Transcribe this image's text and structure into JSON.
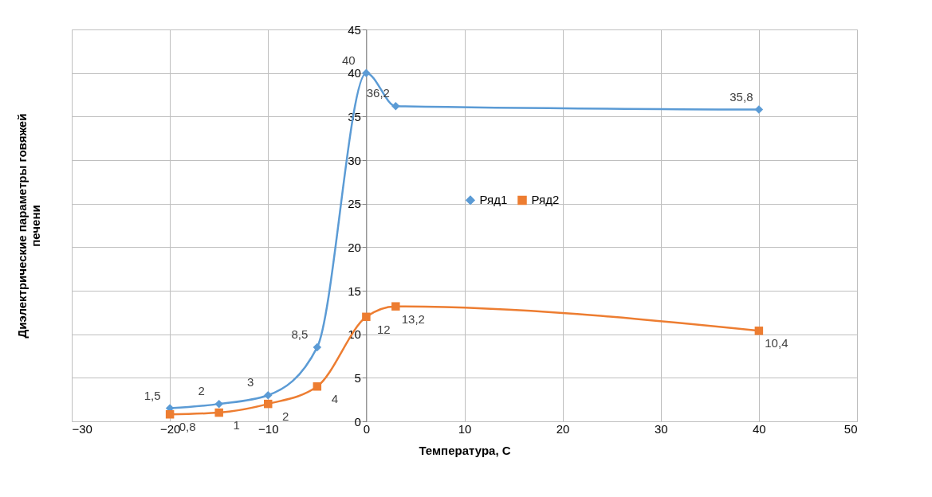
{
  "chart_data": {
    "type": "line",
    "xlabel": "Температура, С",
    "ylabel": "Диэлектрические параметры говяжей печени",
    "x": [
      -20,
      -15,
      -10,
      -5,
      0,
      3,
      40
    ],
    "series": [
      {
        "name": "Ряд1",
        "color": "#5b9bd5",
        "marker": "diamond",
        "values": [
          1.5,
          2,
          3,
          8.5,
          40,
          36.2,
          35.8
        ],
        "value_labels": [
          "1,5",
          "2",
          "3",
          "8,5",
          "40",
          "36,2",
          "35,8"
        ]
      },
      {
        "name": "Ряд2",
        "color": "#ed7d31",
        "marker": "square",
        "values": [
          0.8,
          1,
          2,
          4,
          12,
          13.2,
          10.4
        ],
        "value_labels": [
          "0,8",
          "1",
          "2",
          "4",
          "12",
          "13,2",
          "10,4"
        ]
      }
    ],
    "xlim": [
      -30,
      50
    ],
    "xticks": [
      -30,
      -20,
      -10,
      0,
      10,
      20,
      30,
      40,
      50
    ],
    "ylim": [
      0,
      45
    ],
    "yticks": [
      0,
      5,
      10,
      15,
      20,
      25,
      30,
      35,
      40,
      45
    ],
    "grid": true,
    "legend": "center"
  }
}
